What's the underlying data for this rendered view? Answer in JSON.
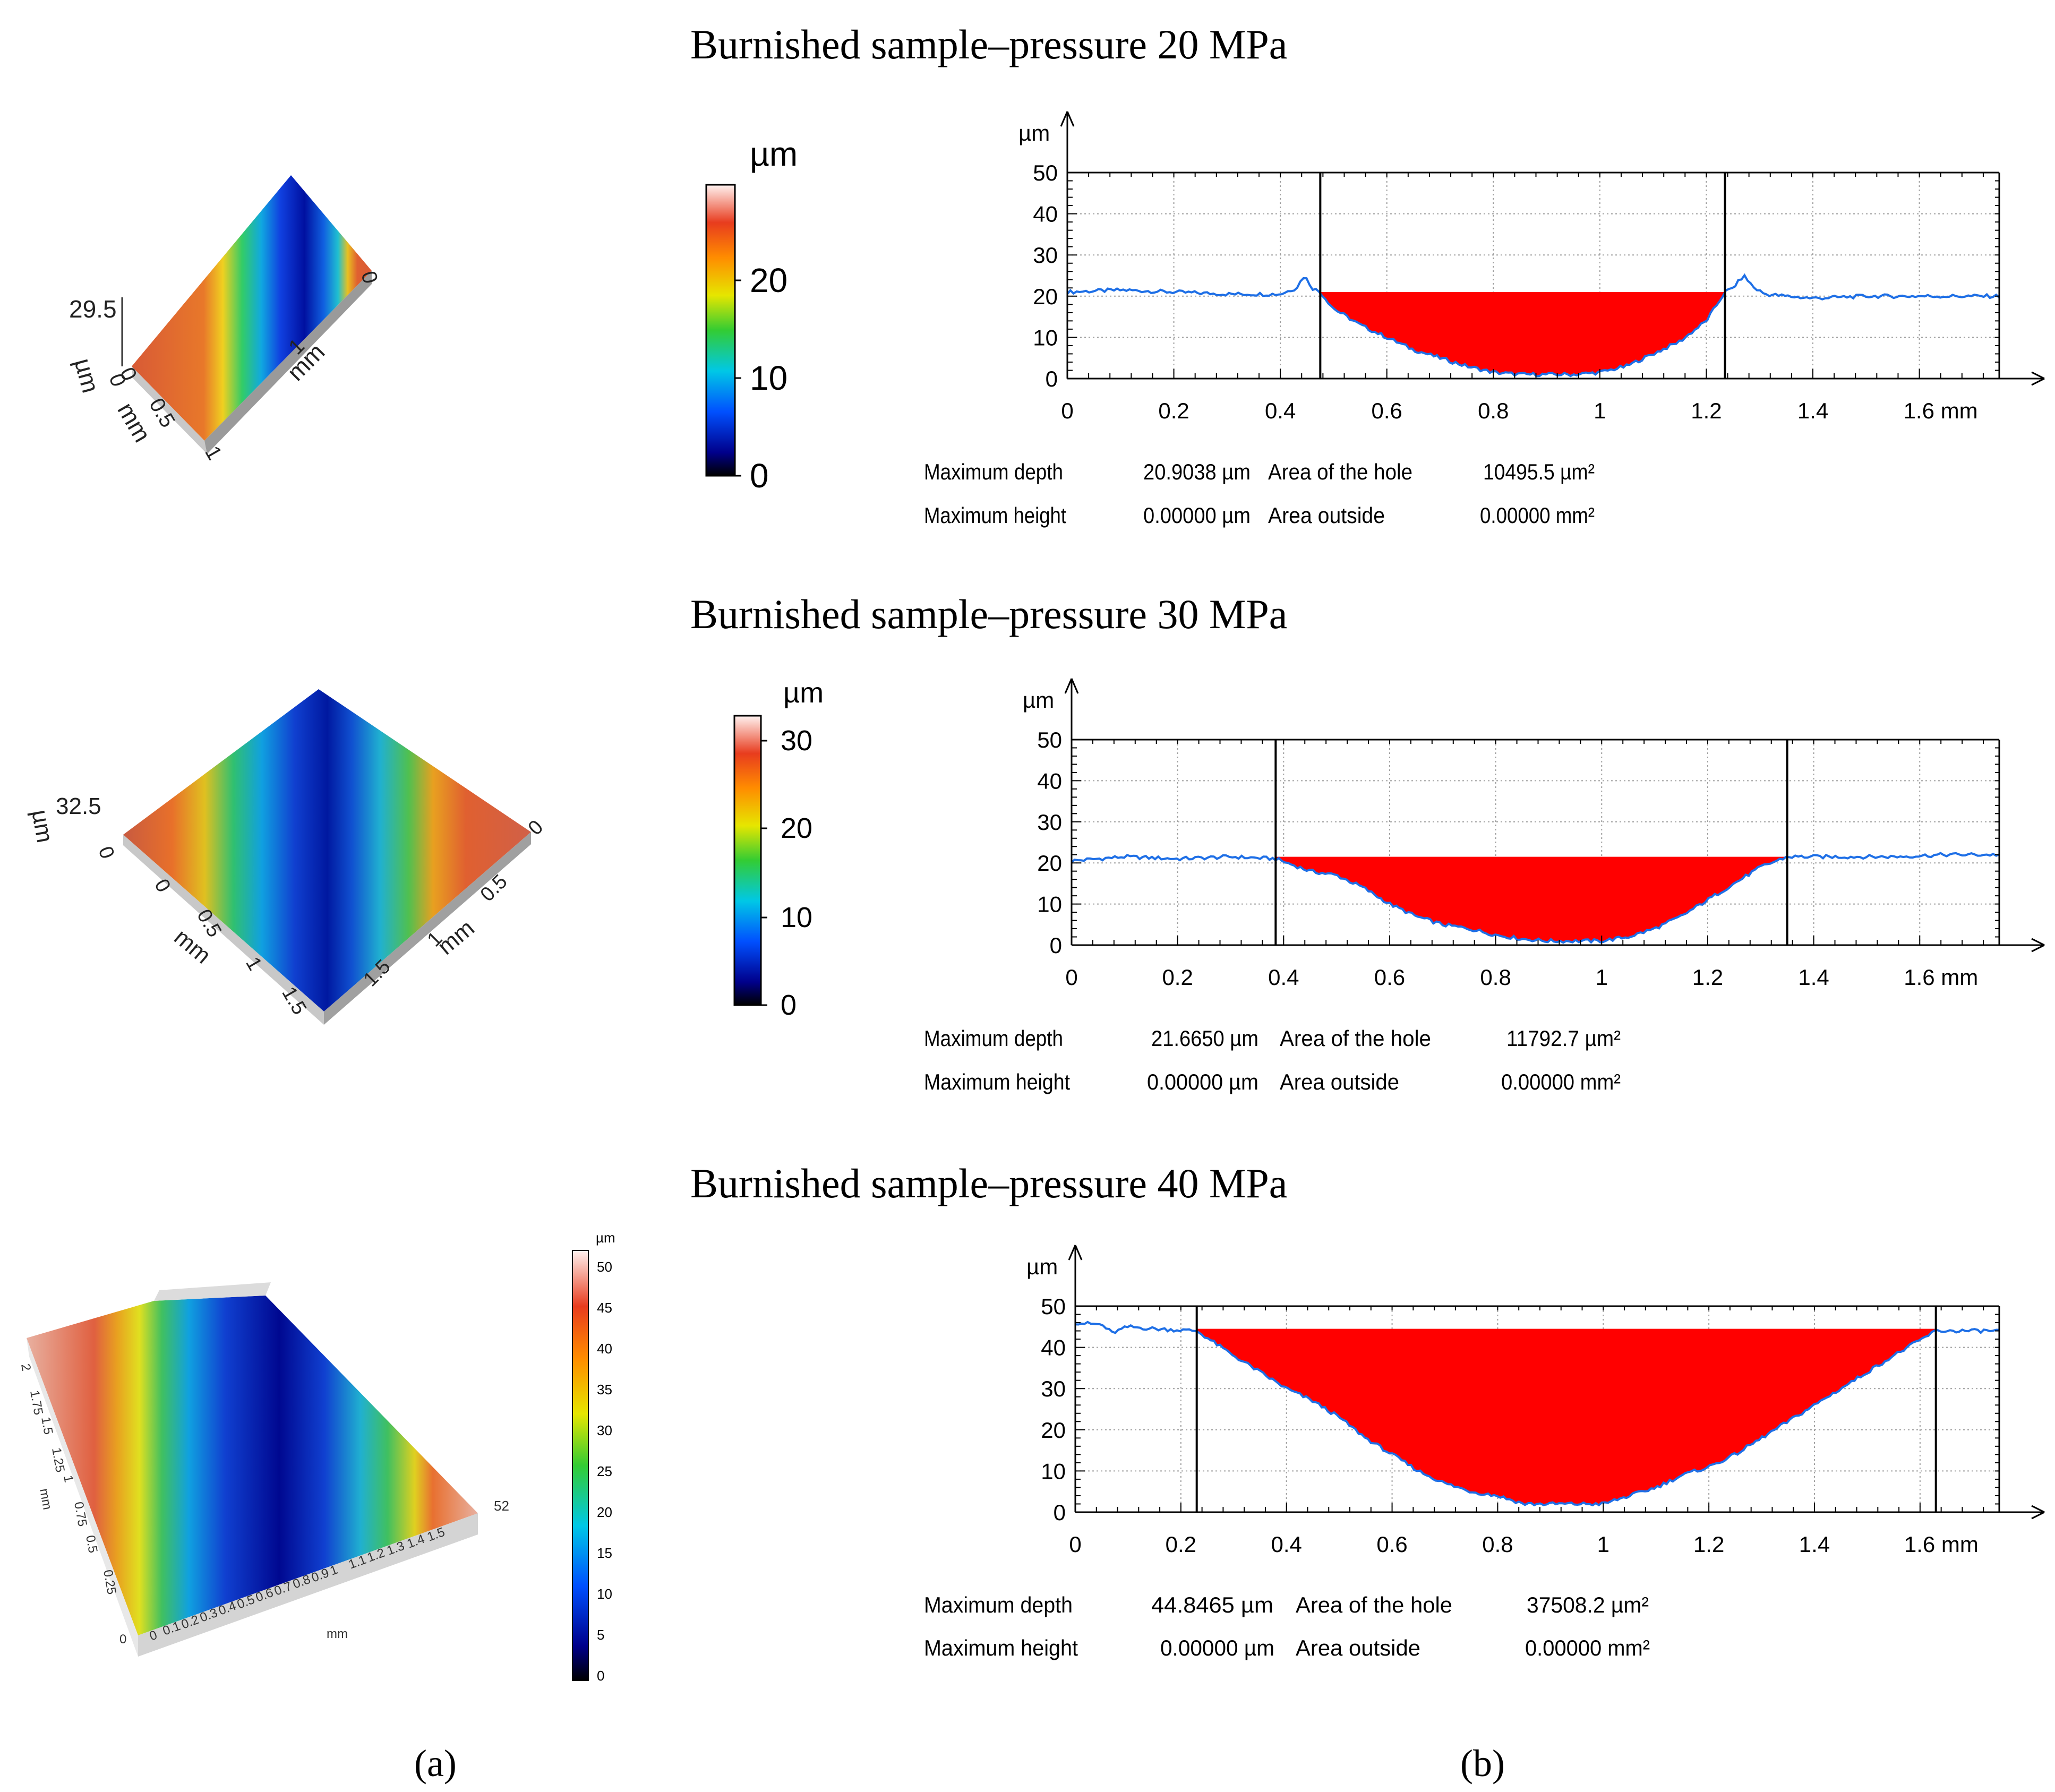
{
  "figure": {
    "labels": [
      "(a)",
      "(b)"
    ]
  },
  "panels": [
    {
      "title": "Burnished sample–pressure 20 MPa",
      "map3d": {
        "z_label": "29.5",
        "unit_labels": [
          "µm",
          "mm",
          "mm"
        ],
        "tick_labels": [
          "0",
          "0",
          "0.5",
          "1",
          "0",
          "1"
        ],
        "colorbar": {
          "unit": "µm",
          "ticks": [
            "20",
            "10",
            "0"
          ]
        }
      },
      "stats": {
        "rows": [
          {
            "label": "Maximum depth",
            "value": "20.9038 µm",
            "label2": "Area of the hole",
            "value2": "10495.5 µm²"
          },
          {
            "label": "Maximum height",
            "value": "0.00000 µm",
            "label2": "Area outside",
            "value2": "0.00000 mm²"
          }
        ]
      }
    },
    {
      "title": "Burnished sample–pressure 30 MPa",
      "map3d": {
        "z_label": "32.5",
        "unit_labels": [
          "µm",
          "mm",
          "mm"
        ],
        "tick_labels": [
          "0",
          "0",
          "0.5",
          "1",
          "1.5",
          "0",
          "0.5",
          "1",
          "1.5"
        ],
        "colorbar": {
          "unit": "µm",
          "ticks": [
            "30",
            "20",
            "10",
            "0"
          ]
        }
      },
      "stats": {
        "rows": [
          {
            "label": "Maximum depth",
            "value": "21.6650 µm",
            "label2": "Area of the hole",
            "value2": "11792.7 µm²"
          },
          {
            "label": "Maximum height",
            "value": "0.00000 µm",
            "label2": "Area outside",
            "value2": "0.00000 mm²"
          }
        ]
      }
    },
    {
      "title": "Burnished sample–pressure 40 MPa",
      "map3d": {
        "z_label": "52",
        "unit_labels": [
          "mm",
          "mm"
        ],
        "tick_labels": [
          "2",
          "1.75",
          "1.5",
          "1.25",
          "1",
          "0.75",
          "0.5",
          "0.25",
          "0",
          "0",
          "0.1",
          "0.2",
          "0.3",
          "0.4",
          "0.5",
          "0.6",
          "0.7",
          "0.8",
          "0.9",
          "1",
          "1.1",
          "1.2",
          "1.3",
          "1.4",
          "1.5"
        ],
        "colorbar": {
          "unit": "µm",
          "ticks": [
            "50",
            "45",
            "40",
            "35",
            "30",
            "25",
            "20",
            "15",
            "10",
            "5",
            "0"
          ]
        }
      },
      "stats": {
        "rows": [
          {
            "label": "Maximum depth",
            "value": "44.8465 µm",
            "label2": "Area of the hole",
            "value2": "37508.2 µm²"
          },
          {
            "label": "Maximum height",
            "value": "0.00000 µm",
            "label2": "Area outside",
            "value2": "0.00000 mm²"
          }
        ]
      }
    }
  ],
  "chart_data": [
    {
      "type": "area",
      "title": "Burnished sample–pressure 20 MPa",
      "ylabel": "µm",
      "xunit": "mm",
      "xlim": [
        0,
        1.75
      ],
      "ylim": [
        0,
        50
      ],
      "xticks": [
        0,
        0.2,
        0.4,
        0.6,
        0.8,
        1,
        1.2,
        1.4,
        1.6
      ],
      "xtick_labels": [
        "0",
        "0.2",
        "0.4",
        "0.6",
        "0.8",
        "1",
        "1.2",
        "1.4",
        "1.6 mm"
      ],
      "yticks": [
        0,
        10,
        20,
        30,
        40,
        50
      ],
      "grid": true,
      "cursors": [
        0.475,
        1.235
      ],
      "hole_level": 21,
      "hole_color": "#ff0000",
      "line_color": "#1e6fe6",
      "profile": {
        "x": [
          0,
          0.1,
          0.2,
          0.3,
          0.4,
          0.43,
          0.445,
          0.46,
          0.475,
          0.5,
          0.55,
          0.6,
          0.65,
          0.7,
          0.75,
          0.8,
          0.85,
          0.9,
          0.95,
          1.0,
          1.05,
          1.1,
          1.15,
          1.2,
          1.235,
          1.25,
          1.27,
          1.29,
          1.31,
          1.35,
          1.4,
          1.5,
          1.6,
          1.7,
          1.75
        ],
        "y": [
          21,
          21.5,
          21,
          20.5,
          20.5,
          22,
          25,
          22,
          21,
          17,
          13,
          10,
          7,
          5,
          3,
          1.5,
          1,
          1,
          1,
          1.5,
          3,
          6,
          9,
          14,
          21,
          22,
          25,
          22,
          20.5,
          20,
          19.5,
          20,
          20,
          20,
          20
        ]
      }
    },
    {
      "type": "area",
      "title": "Burnished sample–pressure 30 MPa",
      "ylabel": "µm",
      "xunit": "mm",
      "xlim": [
        0,
        1.75
      ],
      "ylim": [
        0,
        50
      ],
      "xticks": [
        0,
        0.2,
        0.4,
        0.6,
        0.8,
        1,
        1.2,
        1.4,
        1.6
      ],
      "xtick_labels": [
        "0",
        "0.2",
        "0.4",
        "0.6",
        "0.8",
        "1",
        "1.2",
        "1.4",
        "1.6 mm"
      ],
      "yticks": [
        0,
        10,
        20,
        30,
        40,
        50
      ],
      "grid": true,
      "cursors": [
        0.385,
        1.35
      ],
      "hole_level": 21.5,
      "hole_color": "#ff0000",
      "line_color": "#1e6fe6",
      "profile": {
        "x": [
          0,
          0.1,
          0.2,
          0.3,
          0.385,
          0.45,
          0.5,
          0.55,
          0.6,
          0.65,
          0.7,
          0.75,
          0.8,
          0.85,
          0.9,
          0.95,
          1.0,
          1.05,
          1.1,
          1.15,
          1.2,
          1.25,
          1.3,
          1.35,
          1.45,
          1.55,
          1.65,
          1.75
        ],
        "y": [
          20.5,
          21.5,
          21,
          21.5,
          21,
          18,
          17,
          14,
          10,
          7,
          5,
          4,
          2.5,
          1.5,
          1,
          1,
          1,
          2,
          4,
          7,
          11,
          15,
          19,
          21.5,
          21.5,
          21.5,
          22,
          22
        ]
      }
    },
    {
      "type": "area",
      "title": "Burnished sample–pressure 40 MPa",
      "ylabel": "µm",
      "xunit": "mm",
      "xlim": [
        0,
        1.75
      ],
      "ylim": [
        0,
        50
      ],
      "xticks": [
        0,
        0.2,
        0.4,
        0.6,
        0.8,
        1,
        1.2,
        1.4,
        1.6
      ],
      "xtick_labels": [
        "0",
        "0.2",
        "0.4",
        "0.6",
        "0.8",
        "1",
        "1.2",
        "1.4",
        "1.6 mm"
      ],
      "yticks": [
        0,
        10,
        20,
        30,
        40,
        50
      ],
      "grid": true,
      "cursors": [
        0.23,
        1.63
      ],
      "hole_level": 44.5,
      "hole_color": "#ff0000",
      "line_color": "#1e6fe6",
      "profile": {
        "x": [
          0,
          0.05,
          0.07,
          0.1,
          0.15,
          0.23,
          0.3,
          0.35,
          0.4,
          0.45,
          0.5,
          0.55,
          0.6,
          0.65,
          0.7,
          0.75,
          0.8,
          0.85,
          0.9,
          0.95,
          1.0,
          1.05,
          1.1,
          1.15,
          1.2,
          1.25,
          1.3,
          1.35,
          1.4,
          1.45,
          1.5,
          1.55,
          1.63,
          1.7,
          1.75
        ],
        "y": [
          46,
          45.5,
          43.5,
          45,
          44.5,
          44,
          38,
          34,
          30,
          27,
          23,
          18,
          14,
          10,
          7,
          5,
          4,
          2,
          2,
          2,
          2,
          4,
          6,
          9,
          11,
          14,
          18,
          22,
          26,
          30,
          34,
          38,
          44,
          44,
          44
        ]
      }
    }
  ]
}
